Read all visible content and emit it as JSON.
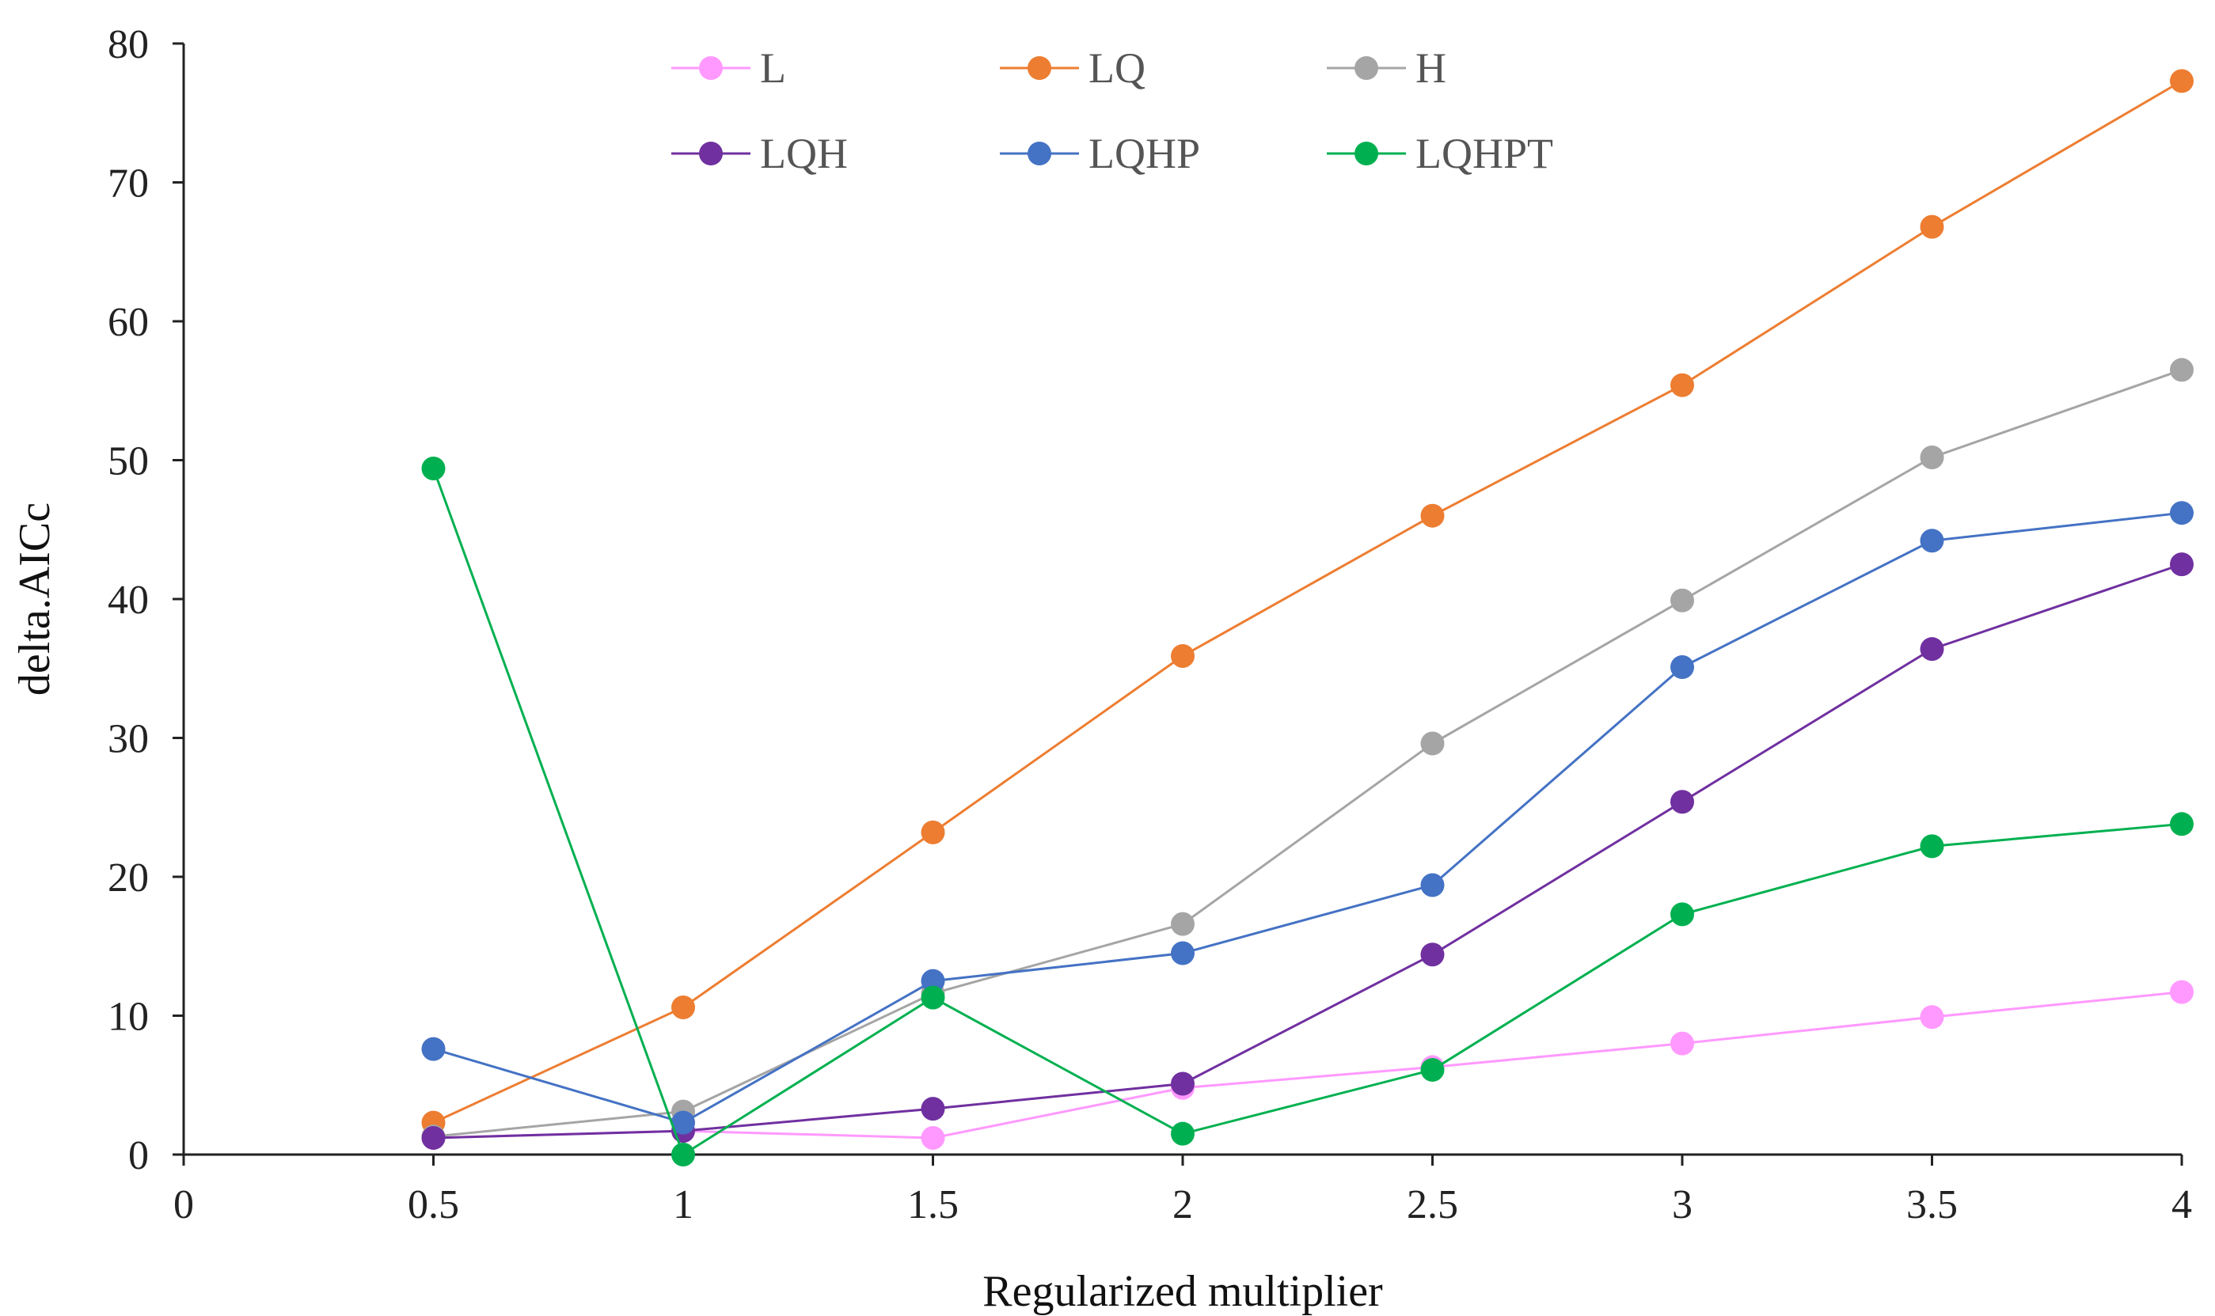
{
  "chart_data": {
    "type": "line",
    "title": "",
    "xlabel": "Regularized multiplier",
    "ylabel": "delta.AICc",
    "xlim": [
      0,
      4
    ],
    "ylim": [
      0,
      80
    ],
    "x_ticks": [
      "0",
      "0.5",
      "1",
      "1.5",
      "2",
      "2.5",
      "3",
      "3.5",
      "4"
    ],
    "y_ticks": [
      "0",
      "10",
      "20",
      "30",
      "40",
      "50",
      "60",
      "70",
      "80"
    ],
    "x": [
      0.5,
      1,
      1.5,
      2,
      2.5,
      3,
      3.5,
      4
    ],
    "grid": false,
    "legend_position": "top",
    "series": [
      {
        "name": "L",
        "color": "#ff99ff",
        "values": [
          1.2,
          1.7,
          1.2,
          4.8,
          6.3,
          8.0,
          9.9,
          11.7
        ]
      },
      {
        "name": "LQ",
        "color": "#ed7d31",
        "values": [
          2.3,
          10.6,
          23.2,
          35.9,
          46.0,
          55.4,
          66.8,
          77.3
        ]
      },
      {
        "name": "H",
        "color": "#a5a5a5",
        "values": [
          1.3,
          3.1,
          11.6,
          16.6,
          29.6,
          39.9,
          50.2,
          56.5
        ]
      },
      {
        "name": "LQH",
        "color": "#7030a0",
        "values": [
          1.2,
          1.7,
          3.3,
          5.1,
          14.4,
          25.4,
          36.4,
          42.5
        ]
      },
      {
        "name": "LQHP",
        "color": "#4472c4",
        "values": [
          7.6,
          2.3,
          12.5,
          14.5,
          19.4,
          35.1,
          44.2,
          46.2
        ]
      },
      {
        "name": "LQHPT",
        "color": "#00b050",
        "values": [
          49.4,
          0.0,
          11.3,
          1.5,
          6.1,
          17.3,
          22.2,
          23.8
        ]
      }
    ]
  }
}
